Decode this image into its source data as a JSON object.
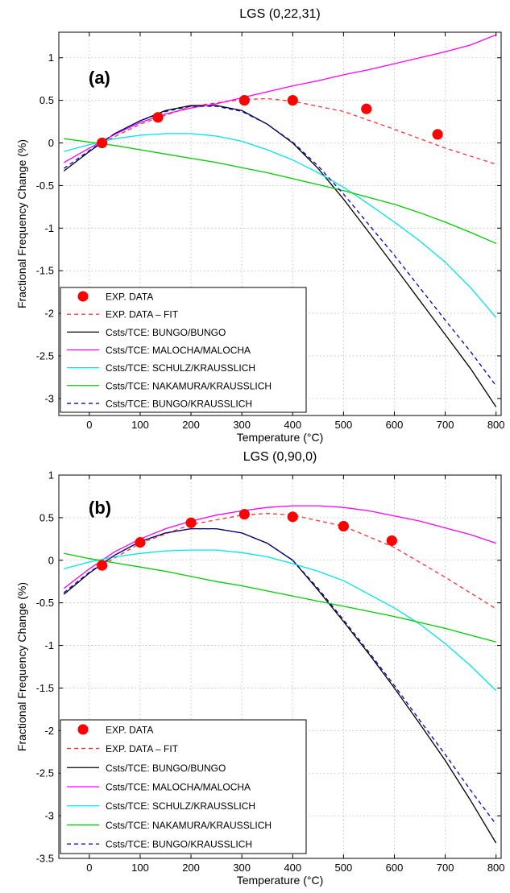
{
  "chart_data": [
    {
      "type": "line",
      "title": "LGS (0,22,31)",
      "panel_label": "(a)",
      "xlabel": "Temperature (°C)",
      "ylabel": "Fractional Frequency Change (%)",
      "xlim": [
        -60,
        810
      ],
      "ylim": [
        -3.2,
        1.3
      ],
      "x_ticks": [
        0,
        100,
        200,
        300,
        400,
        500,
        600,
        700,
        800
      ],
      "y_ticks": [
        1,
        0.5,
        0,
        -0.5,
        -1,
        -1.5,
        -2,
        -2.5,
        -3
      ],
      "grid": true,
      "legend_position": "bottom-left",
      "series": [
        {
          "name": "EXP. DATA",
          "style": "markers",
          "color": "#ff0000",
          "x": [
            25,
            135,
            305,
            400,
            545,
            685
          ],
          "y": [
            0,
            0.3,
            0.5,
            0.5,
            0.4,
            0.1
          ]
        },
        {
          "name": "EXP. DATA – FIT",
          "style": "dashed",
          "color": "#ff3333",
          "x": [
            25,
            100,
            200,
            300,
            350,
            400,
            500,
            600,
            700,
            800
          ],
          "y": [
            0,
            0.22,
            0.43,
            0.51,
            0.52,
            0.49,
            0.37,
            0.16,
            -0.06,
            -0.25
          ]
        },
        {
          "name": "Csts/TCE: BUNGO/BUNGO",
          "style": "solid",
          "color": "#000000",
          "x": [
            -50,
            0,
            50,
            100,
            150,
            200,
            250,
            300,
            350,
            400,
            450,
            500,
            550,
            600,
            650,
            700,
            750,
            800
          ],
          "y": [
            -0.33,
            -0.1,
            0.11,
            0.26,
            0.38,
            0.44,
            0.44,
            0.38,
            0.22,
            0.0,
            -0.3,
            -0.66,
            -1.05,
            -1.45,
            -1.85,
            -2.25,
            -2.65,
            -3.1
          ]
        },
        {
          "name": "Csts/TCE: MALOCHA/MALOCHA",
          "style": "solid",
          "color": "#ff00ff",
          "x": [
            -50,
            0,
            50,
            100,
            150,
            200,
            250,
            300,
            350,
            400,
            450,
            500,
            550,
            600,
            650,
            700,
            750,
            800
          ],
          "y": [
            -0.23,
            -0.06,
            0.1,
            0.24,
            0.34,
            0.41,
            0.46,
            0.53,
            0.6,
            0.67,
            0.73,
            0.8,
            0.86,
            0.93,
            1.0,
            1.07,
            1.15,
            1.27
          ]
        },
        {
          "name": "Csts/TCE: SCHULZ/KRAUSSLICH",
          "style": "solid",
          "color": "#00e5e5",
          "x": [
            -50,
            0,
            50,
            100,
            150,
            200,
            250,
            300,
            350,
            400,
            450,
            500,
            550,
            600,
            650,
            700,
            750,
            800
          ],
          "y": [
            -0.1,
            -0.02,
            0.05,
            0.09,
            0.11,
            0.11,
            0.08,
            0.02,
            -0.08,
            -0.2,
            -0.35,
            -0.52,
            -0.72,
            -0.93,
            -1.15,
            -1.4,
            -1.7,
            -2.05
          ]
        },
        {
          "name": "Csts/TCE: NAKAMURA/KRAUSSLICH",
          "style": "solid",
          "color": "#00cc00",
          "x": [
            -50,
            0,
            50,
            100,
            150,
            200,
            250,
            300,
            350,
            400,
            450,
            500,
            550,
            600,
            650,
            700,
            750,
            800
          ],
          "y": [
            0.05,
            0.01,
            -0.03,
            -0.08,
            -0.13,
            -0.18,
            -0.23,
            -0.29,
            -0.35,
            -0.42,
            -0.49,
            -0.56,
            -0.64,
            -0.72,
            -0.82,
            -0.93,
            -1.05,
            -1.18
          ]
        },
        {
          "name": "Csts/TCE: BUNGO/KRAUSSLICH",
          "style": "dashed",
          "color": "#0000cc",
          "x": [
            -50,
            0,
            50,
            100,
            150,
            200,
            250,
            300,
            350,
            400,
            450,
            500,
            550,
            600,
            650,
            700,
            750,
            800
          ],
          "y": [
            -0.3,
            -0.09,
            0.11,
            0.26,
            0.37,
            0.43,
            0.43,
            0.37,
            0.22,
            0.01,
            -0.27,
            -0.6,
            -0.96,
            -1.32,
            -1.7,
            -2.08,
            -2.45,
            -2.85
          ]
        }
      ]
    },
    {
      "type": "line",
      "title": "LGS (0,90,0)",
      "panel_label": "(b)",
      "xlabel": "Temperature (°C)",
      "ylabel": "Fractional Frequency Change (%)",
      "xlim": [
        -60,
        810
      ],
      "ylim": [
        -3.5,
        1
      ],
      "x_ticks": [
        0,
        100,
        200,
        300,
        400,
        500,
        600,
        700,
        800
      ],
      "y_ticks": [
        1,
        0.5,
        0,
        -0.5,
        -1,
        -1.5,
        -2,
        -2.5,
        -3,
        -3.5
      ],
      "grid": true,
      "legend_position": "bottom-left",
      "series": [
        {
          "name": "EXP. DATA",
          "style": "markers",
          "color": "#ff0000",
          "x": [
            25,
            100,
            200,
            305,
            400,
            500,
            595
          ],
          "y": [
            -0.06,
            0.21,
            0.44,
            0.54,
            0.51,
            0.4,
            0.23
          ]
        },
        {
          "name": "EXP. DATA – FIT",
          "style": "dashed",
          "color": "#ff3333",
          "x": [
            25,
            100,
            200,
            300,
            350,
            400,
            500,
            600,
            700,
            800
          ],
          "y": [
            -0.06,
            0.2,
            0.42,
            0.53,
            0.55,
            0.53,
            0.4,
            0.15,
            -0.2,
            -0.57
          ]
        },
        {
          "name": "Csts/TCE: BUNGO/BUNGO",
          "style": "solid",
          "color": "#000000",
          "x": [
            -50,
            0,
            50,
            100,
            150,
            200,
            250,
            300,
            350,
            400,
            450,
            500,
            550,
            600,
            650,
            700,
            750,
            800
          ],
          "y": [
            -0.4,
            -0.15,
            0.06,
            0.22,
            0.32,
            0.37,
            0.37,
            0.32,
            0.2,
            0.0,
            -0.35,
            -0.72,
            -1.1,
            -1.5,
            -1.92,
            -2.35,
            -2.82,
            -3.32
          ]
        },
        {
          "name": "Csts/TCE: MALOCHA/MALOCHA",
          "style": "solid",
          "color": "#ff00ff",
          "x": [
            -50,
            0,
            50,
            100,
            150,
            200,
            250,
            300,
            350,
            400,
            450,
            500,
            550,
            600,
            650,
            700,
            750,
            800
          ],
          "y": [
            -0.33,
            -0.1,
            0.1,
            0.25,
            0.37,
            0.46,
            0.53,
            0.58,
            0.62,
            0.64,
            0.64,
            0.62,
            0.58,
            0.52,
            0.46,
            0.38,
            0.3,
            0.2
          ]
        },
        {
          "name": "Csts/TCE: SCHULZ/KRAUSSLICH",
          "style": "solid",
          "color": "#00e5e5",
          "x": [
            -50,
            0,
            50,
            100,
            150,
            200,
            250,
            300,
            350,
            400,
            450,
            500,
            550,
            600,
            650,
            700,
            750,
            800
          ],
          "y": [
            -0.1,
            -0.02,
            0.04,
            0.08,
            0.11,
            0.12,
            0.12,
            0.09,
            0.04,
            -0.04,
            -0.13,
            -0.24,
            -0.4,
            -0.56,
            -0.75,
            -0.98,
            -1.24,
            -1.53
          ]
        },
        {
          "name": "Csts/TCE: NAKAMURA/KRAUSSLICH",
          "style": "solid",
          "color": "#00cc00",
          "x": [
            -50,
            0,
            50,
            100,
            150,
            200,
            250,
            300,
            350,
            400,
            450,
            500,
            550,
            600,
            650,
            700,
            750,
            800
          ],
          "y": [
            0.08,
            0.02,
            -0.03,
            -0.08,
            -0.13,
            -0.19,
            -0.25,
            -0.3,
            -0.36,
            -0.42,
            -0.48,
            -0.54,
            -0.6,
            -0.66,
            -0.73,
            -0.8,
            -0.88,
            -0.96
          ]
        },
        {
          "name": "Csts/TCE: BUNGO/KRAUSSLICH",
          "style": "dashed",
          "color": "#0000cc",
          "x": [
            -50,
            0,
            50,
            100,
            150,
            200,
            250,
            300,
            350,
            400,
            450,
            500,
            550,
            600,
            650,
            700,
            750,
            800
          ],
          "y": [
            -0.38,
            -0.14,
            0.06,
            0.22,
            0.32,
            0.37,
            0.37,
            0.32,
            0.2,
            0.0,
            -0.33,
            -0.7,
            -1.08,
            -1.47,
            -1.88,
            -2.28,
            -2.7,
            -3.1
          ]
        }
      ]
    }
  ]
}
